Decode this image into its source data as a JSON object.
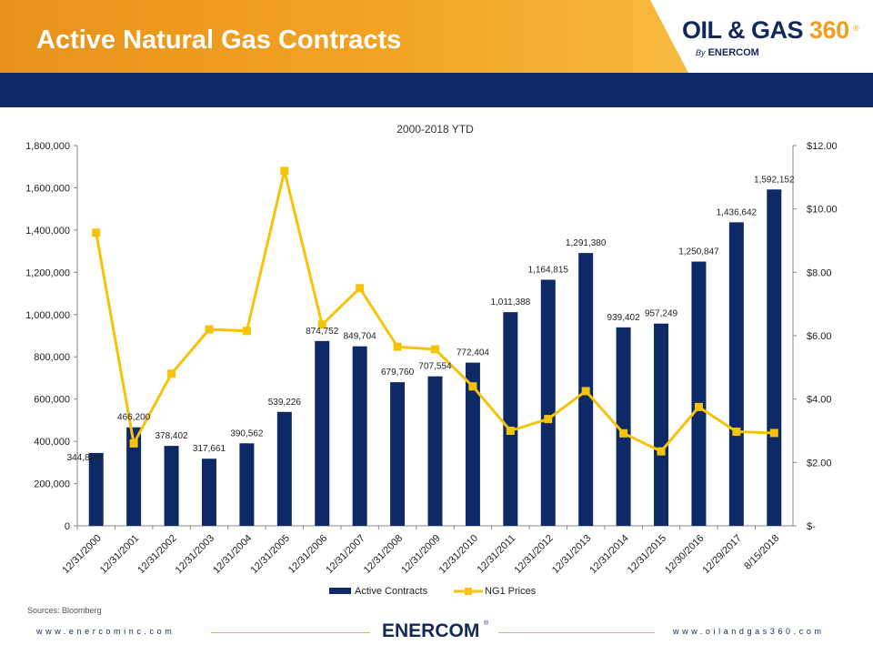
{
  "header": {
    "title": "Active Natural Gas Contracts",
    "logo_brand": "OIL & GAS ",
    "logo_number": "360",
    "logo_registered": "®",
    "logo_by": "By",
    "logo_company": "ENERCOM"
  },
  "footer": {
    "sources": "Sources: Bloomberg",
    "left_url": "www.enercominc.com",
    "right_url": "www.oilandgas360.com",
    "center_logo": "ENERCOM",
    "center_reg": "®"
  },
  "colors": {
    "bars": "#0d2a66",
    "line": "#f7c30a",
    "header_orange": "#f2a424",
    "band_navy": "#0d2a66"
  },
  "chart_data": {
    "type": "bar",
    "title": "2000-2018 YTD",
    "categories": [
      "12/31/2000",
      "12/31/2001",
      "12/31/2002",
      "12/31/2003",
      "12/31/2004",
      "12/31/2005",
      "12/31/2006",
      "12/31/2007",
      "12/31/2008",
      "12/31/2009",
      "12/31/2010",
      "12/31/2011",
      "12/31/2012",
      "12/31/2013",
      "12/31/2014",
      "12/31/2015",
      "12/30/2016",
      "12/29/2017",
      "8/15/2018"
    ],
    "series": [
      {
        "name": "Active Contracts",
        "type": "bar",
        "axis": "left",
        "values": [
          344808,
          466200,
          378402,
          317661,
          390562,
          539226,
          874752,
          849704,
          679760,
          707554,
          772404,
          1011388,
          1164815,
          1291380,
          939402,
          957249,
          1250847,
          1436642,
          1592152
        ],
        "labels": [
          "344,808",
          "466,200",
          "378,402",
          "317,661",
          "390,562",
          "539,226",
          "874,752",
          "849,704",
          "679,760",
          "707,554",
          "772,404",
          "1,011,388",
          "1,164,815",
          "1,291,380",
          "939,402",
          "957,249",
          "1,250,847",
          "1,436,642",
          "1,592,152"
        ]
      },
      {
        "name": "NG1 Prices",
        "type": "line",
        "axis": "right",
        "values": [
          9.25,
          2.6,
          4.8,
          6.2,
          6.15,
          11.2,
          6.35,
          7.5,
          5.65,
          5.57,
          4.4,
          3.0,
          3.37,
          4.25,
          2.92,
          2.35,
          3.75,
          2.97,
          2.93
        ]
      }
    ],
    "y_left": {
      "min": 0,
      "max": 1800000,
      "ticks": [
        "0",
        "200,000",
        "400,000",
        "600,000",
        "800,000",
        "1,000,000",
        "1,200,000",
        "1,400,000",
        "1,600,000",
        "1,800,000"
      ]
    },
    "y_right": {
      "min": 0,
      "max": 12,
      "ticks": [
        "$-",
        "$2.00",
        "$4.00",
        "$6.00",
        "$8.00",
        "$10.00",
        "$12.00"
      ]
    },
    "grid": false,
    "legend_position": "bottom"
  }
}
